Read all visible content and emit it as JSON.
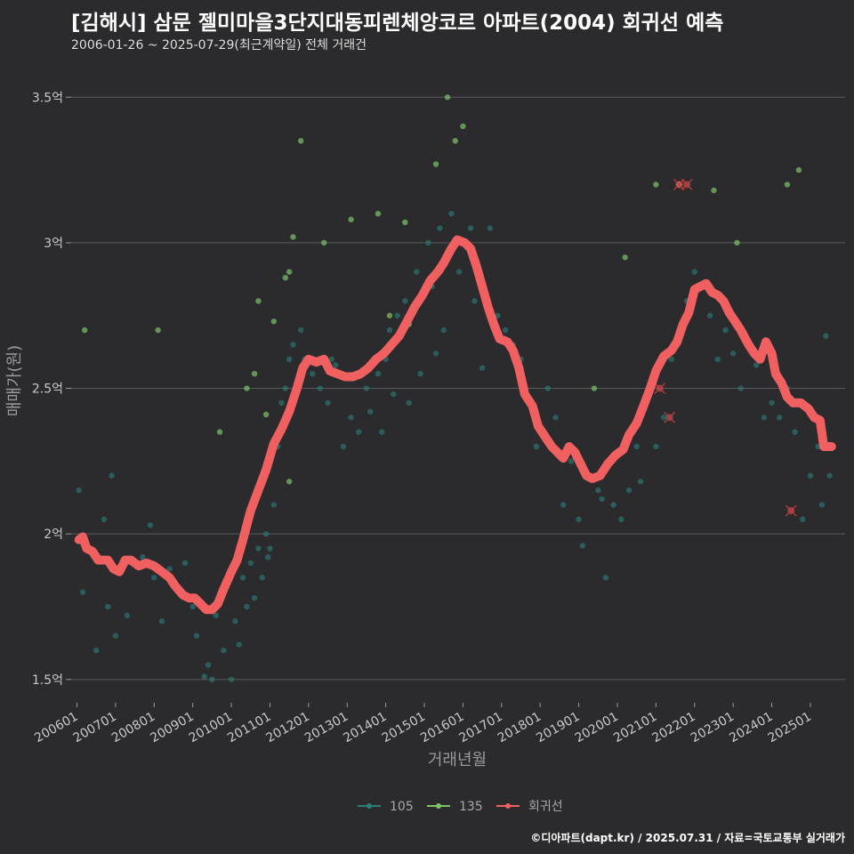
{
  "header": {
    "title": "[김해시] 삼문 젤미마을3단지대동피렌체앙코르 아파트(2004) 회귀선 예측",
    "subtitle": "2006-01-26 ~ 2025-07-29(최근계약일) 전체 거래건"
  },
  "footer": {
    "credit": "©디아파트(dapt.kr) / 2025.07.31 / 자료=국토교통부 실거래가"
  },
  "colors": {
    "background": "#2b2b2e",
    "grid": "#5a5a5a",
    "s105": "#2a7f7a",
    "s135": "#7cc46a",
    "regression": "#f06060"
  },
  "chart_data": {
    "type": "scatter",
    "xlabel": "거래년월",
    "ylabel": "매매가(원)",
    "y_range_eok": [
      1.42,
      3.62
    ],
    "y_ticks": [
      {
        "value": 1.5,
        "label": "1.5억"
      },
      {
        "value": 2.0,
        "label": "2억"
      },
      {
        "value": 2.5,
        "label": "2.5억"
      },
      {
        "value": 3.0,
        "label": "3억"
      },
      {
        "value": 3.5,
        "label": "3.5억"
      }
    ],
    "x_range_year": [
      2005.85,
      2025.9
    ],
    "x_ticks": [
      "200601",
      "200701",
      "200801",
      "200901",
      "201001",
      "201101",
      "201201",
      "201301",
      "201401",
      "201501",
      "201601",
      "201701",
      "201801",
      "201901",
      "202001",
      "202101",
      "202201",
      "202301",
      "202401",
      "202501"
    ],
    "legend": {
      "position": "bottom",
      "entries": [
        "105",
        "135",
        "회귀선"
      ]
    },
    "series": [
      {
        "name": "105",
        "points": [
          [
            2006.05,
            2.15
          ],
          [
            2006.15,
            1.8
          ],
          [
            2006.5,
            1.6
          ],
          [
            2006.7,
            2.05
          ],
          [
            2006.8,
            1.75
          ],
          [
            2006.9,
            2.2
          ],
          [
            2007.0,
            1.65
          ],
          [
            2007.3,
            1.72
          ],
          [
            2007.5,
            1.9
          ],
          [
            2007.7,
            1.92
          ],
          [
            2007.9,
            2.03
          ],
          [
            2008.0,
            1.85
          ],
          [
            2008.2,
            1.7
          ],
          [
            2008.4,
            1.88
          ],
          [
            2008.6,
            1.82
          ],
          [
            2008.8,
            1.9
          ],
          [
            2009.0,
            1.75
          ],
          [
            2009.1,
            1.65
          ],
          [
            2009.3,
            1.51
          ],
          [
            2009.4,
            1.55
          ],
          [
            2009.5,
            1.5
          ],
          [
            2009.6,
            1.72
          ],
          [
            2009.8,
            1.6
          ],
          [
            2010.0,
            1.5
          ],
          [
            2010.1,
            1.7
          ],
          [
            2010.2,
            1.62
          ],
          [
            2010.3,
            1.85
          ],
          [
            2010.4,
            1.75
          ],
          [
            2010.5,
            1.9
          ],
          [
            2010.6,
            1.78
          ],
          [
            2010.7,
            1.95
          ],
          [
            2010.8,
            1.85
          ],
          [
            2010.9,
            2.0
          ],
          [
            2011.0,
            1.95
          ],
          [
            2011.1,
            2.1
          ],
          [
            2011.2,
            2.3
          ],
          [
            2011.4,
            2.5
          ],
          [
            2011.5,
            2.6
          ],
          [
            2011.6,
            2.65
          ],
          [
            2011.8,
            2.7
          ],
          [
            2011.9,
            2.6
          ],
          [
            2012.1,
            2.55
          ],
          [
            2012.3,
            2.5
          ],
          [
            2012.5,
            2.45
          ],
          [
            2012.7,
            2.58
          ],
          [
            2012.9,
            2.3
          ],
          [
            2013.1,
            2.4
          ],
          [
            2013.3,
            2.35
          ],
          [
            2013.5,
            2.5
          ],
          [
            2013.6,
            2.42
          ],
          [
            2013.8,
            2.55
          ],
          [
            2014.0,
            2.6
          ],
          [
            2014.1,
            2.7
          ],
          [
            2014.3,
            2.75
          ],
          [
            2014.5,
            2.8
          ],
          [
            2014.6,
            2.45
          ],
          [
            2014.8,
            2.9
          ],
          [
            2014.9,
            2.55
          ],
          [
            2015.1,
            3.0
          ],
          [
            2015.2,
            2.85
          ],
          [
            2015.4,
            3.05
          ],
          [
            2015.5,
            2.7
          ],
          [
            2015.7,
            3.1
          ],
          [
            2015.9,
            2.9
          ],
          [
            2016.0,
            3.0
          ],
          [
            2016.3,
            2.8
          ],
          [
            2016.5,
            2.57
          ],
          [
            2016.7,
            3.05
          ],
          [
            2016.9,
            2.75
          ],
          [
            2017.3,
            2.65
          ],
          [
            2017.5,
            2.6
          ],
          [
            2017.7,
            2.45
          ],
          [
            2017.9,
            2.3
          ],
          [
            2018.2,
            2.5
          ],
          [
            2018.4,
            2.4
          ],
          [
            2018.6,
            2.1
          ],
          [
            2018.8,
            2.25
          ],
          [
            2019.0,
            2.05
          ],
          [
            2019.1,
            1.96
          ],
          [
            2019.3,
            2.2
          ],
          [
            2019.5,
            2.15
          ],
          [
            2019.7,
            1.85
          ],
          [
            2019.9,
            2.1
          ],
          [
            2020.1,
            2.05
          ],
          [
            2020.3,
            2.15
          ],
          [
            2020.5,
            2.3
          ],
          [
            2020.7,
            2.45
          ],
          [
            2020.9,
            2.5
          ],
          [
            2021.0,
            2.3
          ],
          [
            2021.2,
            2.4
          ],
          [
            2021.4,
            2.6
          ],
          [
            2021.6,
            2.7
          ],
          [
            2021.8,
            2.8
          ],
          [
            2022.0,
            2.9
          ],
          [
            2022.2,
            2.85
          ],
          [
            2022.4,
            2.75
          ],
          [
            2022.6,
            2.6
          ],
          [
            2022.8,
            2.7
          ],
          [
            2023.0,
            2.62
          ],
          [
            2023.2,
            2.5
          ],
          [
            2023.4,
            2.65
          ],
          [
            2023.6,
            2.58
          ],
          [
            2023.8,
            2.4
          ],
          [
            2024.0,
            2.45
          ],
          [
            2024.2,
            2.4
          ],
          [
            2024.4,
            2.5
          ],
          [
            2024.6,
            2.35
          ],
          [
            2024.8,
            2.05
          ],
          [
            2025.0,
            2.2
          ],
          [
            2025.2,
            2.3
          ],
          [
            2025.3,
            2.1
          ],
          [
            2025.4,
            2.68
          ],
          [
            2025.5,
            2.2
          ],
          [
            2014.2,
            2.48
          ],
          [
            2013.9,
            2.35
          ],
          [
            2012.6,
            2.6
          ],
          [
            2011.3,
            2.45
          ],
          [
            2010.95,
            1.92
          ],
          [
            2015.3,
            2.62
          ],
          [
            2016.2,
            3.05
          ],
          [
            2017.1,
            2.7
          ],
          [
            2019.6,
            2.12
          ],
          [
            2020.6,
            2.18
          ]
        ]
      },
      {
        "name": "135",
        "points": [
          [
            2006.2,
            2.7
          ],
          [
            2008.1,
            2.7
          ],
          [
            2009.7,
            2.35
          ],
          [
            2010.4,
            2.5
          ],
          [
            2010.6,
            2.55
          ],
          [
            2010.7,
            2.8
          ],
          [
            2010.9,
            2.41
          ],
          [
            2011.1,
            2.73
          ],
          [
            2011.4,
            2.88
          ],
          [
            2011.5,
            2.9
          ],
          [
            2011.6,
            3.02
          ],
          [
            2011.8,
            3.35
          ],
          [
            2012.4,
            3.0
          ],
          [
            2013.1,
            3.08
          ],
          [
            2013.8,
            3.1
          ],
          [
            2014.1,
            2.75
          ],
          [
            2014.5,
            3.07
          ],
          [
            2014.6,
            2.72
          ],
          [
            2015.3,
            3.27
          ],
          [
            2015.6,
            3.5
          ],
          [
            2015.8,
            3.35
          ],
          [
            2016.0,
            3.4
          ],
          [
            2019.4,
            2.5
          ],
          [
            2020.2,
            2.95
          ],
          [
            2021.0,
            3.2
          ],
          [
            2021.6,
            3.2
          ],
          [
            2022.5,
            3.18
          ],
          [
            2023.1,
            3.0
          ],
          [
            2024.4,
            3.2
          ],
          [
            2024.7,
            3.25
          ],
          [
            2011.5,
            2.18
          ]
        ]
      }
    ],
    "regression_outliers": [
      [
        2021.6,
        3.2
      ],
      [
        2021.8,
        3.2
      ],
      [
        2021.1,
        2.5
      ],
      [
        2021.35,
        2.4
      ],
      [
        2024.5,
        2.08
      ]
    ],
    "regression": {
      "name": "회귀선",
      "points": [
        [
          2006.05,
          1.98
        ],
        [
          2006.15,
          1.99
        ],
        [
          2006.25,
          1.95
        ],
        [
          2006.4,
          1.94
        ],
        [
          2006.55,
          1.91
        ],
        [
          2006.8,
          1.91
        ],
        [
          2006.95,
          1.88
        ],
        [
          2007.1,
          1.87
        ],
        [
          2007.25,
          1.91
        ],
        [
          2007.4,
          1.91
        ],
        [
          2007.6,
          1.89
        ],
        [
          2007.8,
          1.9
        ],
        [
          2008.0,
          1.89
        ],
        [
          2008.2,
          1.87
        ],
        [
          2008.4,
          1.85
        ],
        [
          2008.55,
          1.82
        ],
        [
          2008.75,
          1.79
        ],
        [
          2008.9,
          1.78
        ],
        [
          2009.05,
          1.78
        ],
        [
          2009.2,
          1.76
        ],
        [
          2009.35,
          1.74
        ],
        [
          2009.5,
          1.74
        ],
        [
          2009.65,
          1.76
        ],
        [
          2009.8,
          1.81
        ],
        [
          2010.0,
          1.87
        ],
        [
          2010.15,
          1.91
        ],
        [
          2010.3,
          1.98
        ],
        [
          2010.5,
          2.08
        ],
        [
          2010.7,
          2.15
        ],
        [
          2010.9,
          2.22
        ],
        [
          2011.1,
          2.31
        ],
        [
          2011.3,
          2.36
        ],
        [
          2011.5,
          2.42
        ],
        [
          2011.7,
          2.5
        ],
        [
          2011.85,
          2.57
        ],
        [
          2012.0,
          2.6
        ],
        [
          2012.2,
          2.59
        ],
        [
          2012.4,
          2.6
        ],
        [
          2012.55,
          2.56
        ],
        [
          2012.75,
          2.55
        ],
        [
          2012.95,
          2.54
        ],
        [
          2013.15,
          2.54
        ],
        [
          2013.35,
          2.55
        ],
        [
          2013.55,
          2.57
        ],
        [
          2013.75,
          2.6
        ],
        [
          2013.95,
          2.62
        ],
        [
          2014.15,
          2.65
        ],
        [
          2014.35,
          2.68
        ],
        [
          2014.55,
          2.73
        ],
        [
          2014.75,
          2.78
        ],
        [
          2014.95,
          2.82
        ],
        [
          2015.15,
          2.87
        ],
        [
          2015.35,
          2.9
        ],
        [
          2015.5,
          2.93
        ],
        [
          2015.7,
          2.98
        ],
        [
          2015.85,
          3.01
        ],
        [
          2016.05,
          3.0
        ],
        [
          2016.2,
          2.98
        ],
        [
          2016.35,
          2.92
        ],
        [
          2016.5,
          2.85
        ],
        [
          2016.65,
          2.78
        ],
        [
          2016.8,
          2.72
        ],
        [
          2016.95,
          2.67
        ],
        [
          2017.15,
          2.66
        ],
        [
          2017.3,
          2.63
        ],
        [
          2017.45,
          2.57
        ],
        [
          2017.6,
          2.48
        ],
        [
          2017.8,
          2.44
        ],
        [
          2017.95,
          2.37
        ],
        [
          2018.15,
          2.33
        ],
        [
          2018.3,
          2.3
        ],
        [
          2018.45,
          2.28
        ],
        [
          2018.6,
          2.26
        ],
        [
          2018.75,
          2.3
        ],
        [
          2018.9,
          2.28
        ],
        [
          2019.05,
          2.24
        ],
        [
          2019.2,
          2.2
        ],
        [
          2019.35,
          2.19
        ],
        [
          2019.55,
          2.2
        ],
        [
          2019.75,
          2.24
        ],
        [
          2019.95,
          2.27
        ],
        [
          2020.15,
          2.29
        ],
        [
          2020.3,
          2.34
        ],
        [
          2020.5,
          2.38
        ],
        [
          2020.65,
          2.43
        ],
        [
          2020.85,
          2.5
        ],
        [
          2021.0,
          2.56
        ],
        [
          2021.2,
          2.61
        ],
        [
          2021.4,
          2.63
        ],
        [
          2021.55,
          2.66
        ],
        [
          2021.7,
          2.72
        ],
        [
          2021.85,
          2.76
        ],
        [
          2022.0,
          2.84
        ],
        [
          2022.15,
          2.85
        ],
        [
          2022.3,
          2.86
        ],
        [
          2022.45,
          2.83
        ],
        [
          2022.6,
          2.82
        ],
        [
          2022.75,
          2.8
        ],
        [
          2022.9,
          2.76
        ],
        [
          2023.05,
          2.73
        ],
        [
          2023.2,
          2.7
        ],
        [
          2023.4,
          2.65
        ],
        [
          2023.55,
          2.62
        ],
        [
          2023.7,
          2.6
        ],
        [
          2023.85,
          2.66
        ],
        [
          2024.0,
          2.62
        ],
        [
          2024.1,
          2.55
        ],
        [
          2024.25,
          2.52
        ],
        [
          2024.4,
          2.47
        ],
        [
          2024.55,
          2.45
        ],
        [
          2024.75,
          2.45
        ],
        [
          2024.95,
          2.43
        ],
        [
          2025.1,
          2.4
        ],
        [
          2025.25,
          2.39
        ],
        [
          2025.35,
          2.3
        ],
        [
          2025.55,
          2.3
        ]
      ]
    }
  }
}
